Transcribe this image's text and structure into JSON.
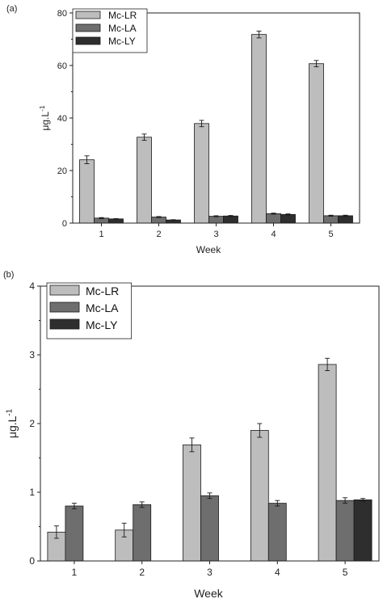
{
  "chart_data": [
    {
      "type": "bar",
      "panel_label": "(a)",
      "categories": [
        "1",
        "2",
        "3",
        "4",
        "5"
      ],
      "xlabel": "Week",
      "ylabel": "μg.L",
      "ylabel_superscript": "-1",
      "ylim": [
        0,
        80
      ],
      "yticks": [
        "0",
        "20",
        "40",
        "60",
        "80"
      ],
      "grid": false,
      "legend_position": "top-left",
      "series": [
        {
          "name": "Mc-LR",
          "color": "#bdbdbd",
          "values": [
            24.1,
            32.7,
            37.9,
            71.8,
            60.7
          ],
          "errors": [
            1.5,
            1.2,
            1.2,
            1.3,
            1.2
          ]
        },
        {
          "name": "Mc-LA",
          "color": "#6e6e6e",
          "values": [
            1.9,
            2.3,
            2.6,
            3.6,
            2.8
          ],
          "errors": [
            0.2,
            0.2,
            0.2,
            0.2,
            0.2
          ]
        },
        {
          "name": "Mc-LY",
          "color": "#2e2e2e",
          "values": [
            1.6,
            1.2,
            2.7,
            3.3,
            2.8
          ],
          "errors": [
            0.1,
            0.1,
            0.2,
            0.2,
            0.2
          ]
        }
      ]
    },
    {
      "type": "bar",
      "panel_label": "(b)",
      "categories": [
        "1",
        "2",
        "3",
        "4",
        "5"
      ],
      "xlabel": "Week",
      "ylabel": "μg.L",
      "ylabel_superscript": "-1",
      "ylim": [
        0,
        4
      ],
      "yticks": [
        "0",
        "1",
        "2",
        "3",
        "4"
      ],
      "grid": false,
      "legend_position": "top-left",
      "series": [
        {
          "name": "Mc-LR",
          "color": "#bdbdbd",
          "values": [
            0.42,
            0.45,
            1.69,
            1.9,
            2.86
          ],
          "errors": [
            0.09,
            0.1,
            0.1,
            0.1,
            0.09
          ]
        },
        {
          "name": "Mc-LA",
          "color": "#6e6e6e",
          "values": [
            0.8,
            0.82,
            0.95,
            0.84,
            0.88
          ],
          "errors": [
            0.04,
            0.04,
            0.04,
            0.04,
            0.04
          ]
        },
        {
          "name": "Mc-LY",
          "color": "#2e2e2e",
          "values": [
            null,
            null,
            null,
            null,
            0.89
          ],
          "errors": [
            null,
            null,
            null,
            null,
            0.02
          ]
        }
      ]
    }
  ]
}
